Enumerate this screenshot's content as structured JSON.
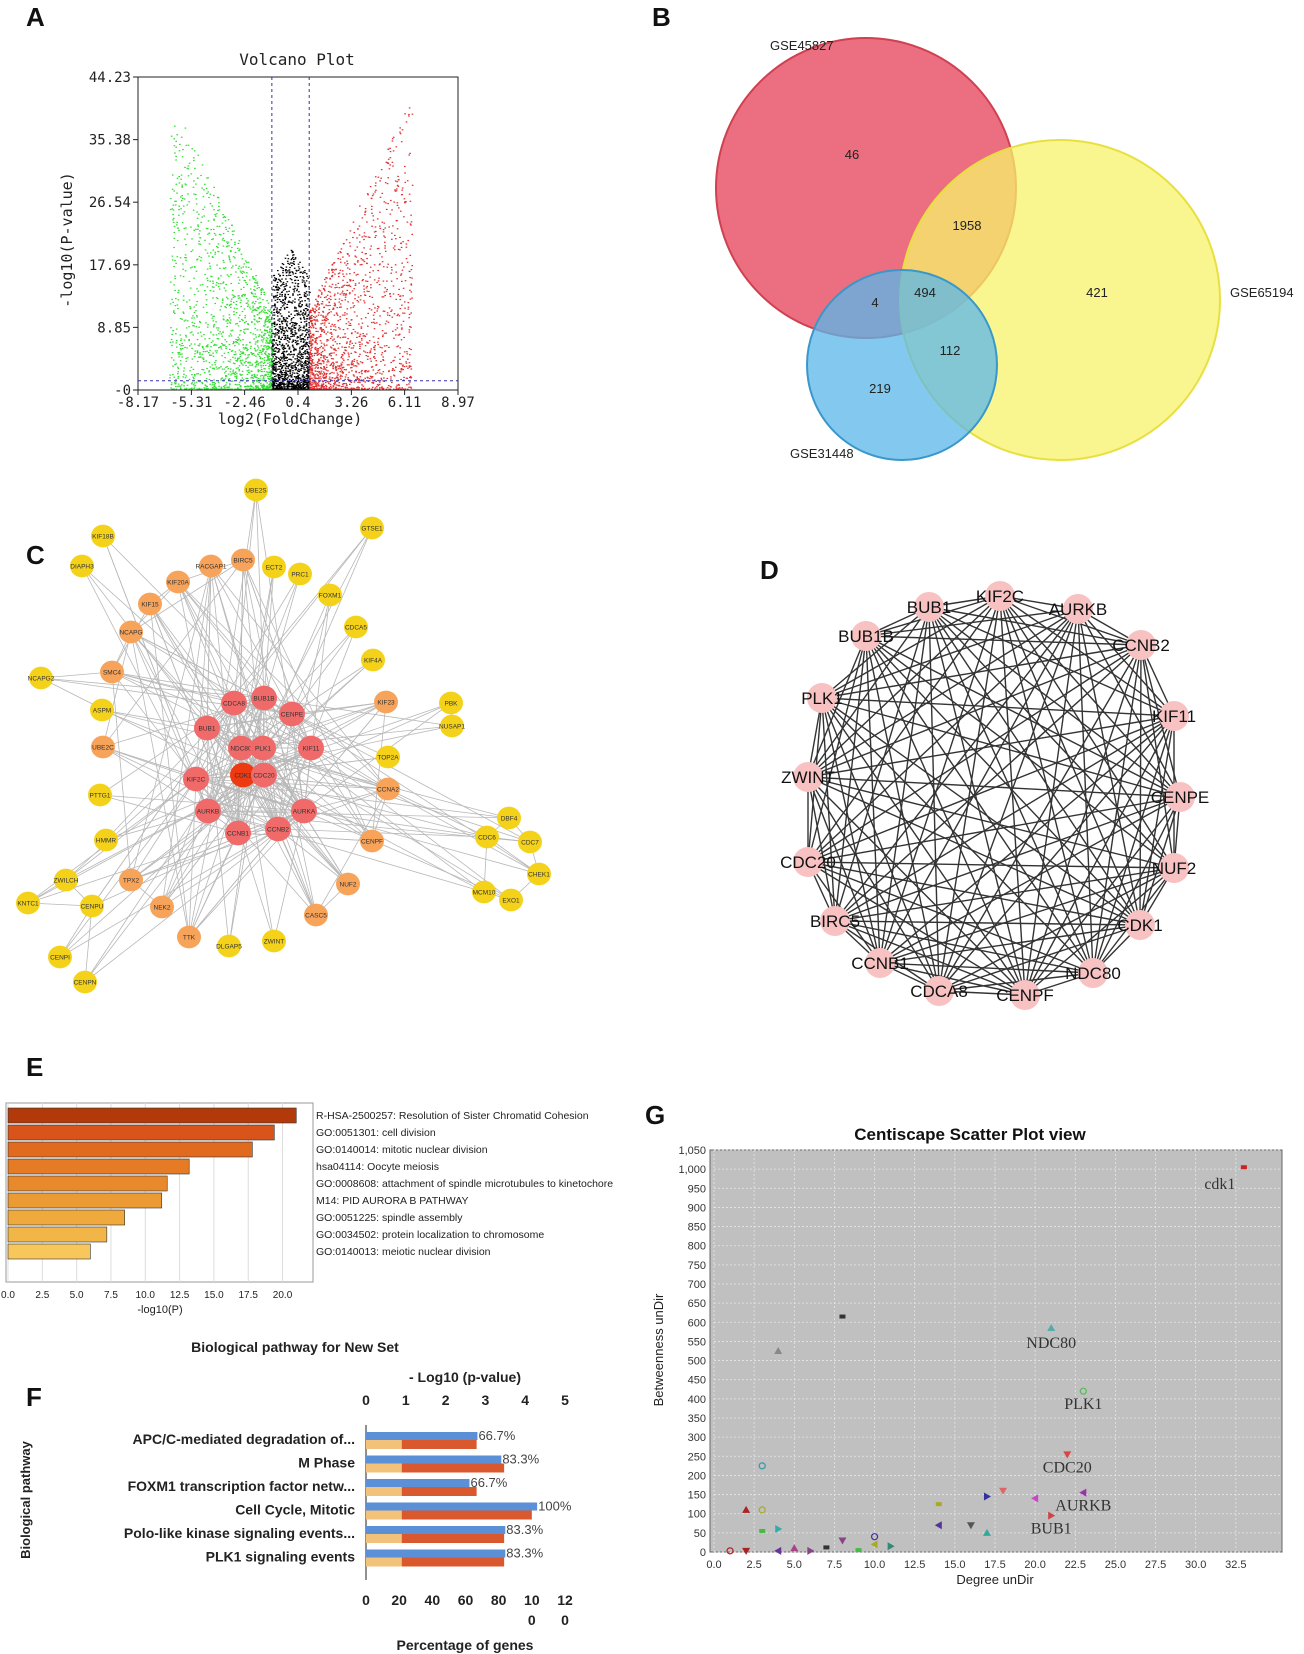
{
  "panel_labels": {
    "A": "A",
    "B": "B",
    "C": "C",
    "D": "D",
    "E": "E",
    "F": "F",
    "G": "G"
  },
  "colors": {
    "up": "#e03030",
    "down": "#33dd33",
    "ns": "#000000",
    "venn_red": "#e8566a",
    "venn_yellow": "#f7f36a",
    "venn_blue": "#5ab7ea"
  },
  "chart_data": [
    {
      "id": "A",
      "type": "scatter",
      "title": "Volcano Plot",
      "xlabel": "log2(FoldChange)",
      "ylabel": "-log10(P-value)",
      "x_ticks": [
        "-8.17",
        "-5.31",
        "-2.46",
        "0.4",
        "3.26",
        "6.11",
        "8.97"
      ],
      "y_ticks": [
        "-0",
        "8.85",
        "17.69",
        "26.54",
        "35.38",
        "44.23"
      ],
      "xlim": [
        -8.17,
        8.97
      ],
      "ylim": [
        0,
        44.23
      ],
      "thresholds": {
        "x": [
          -1,
          1
        ],
        "y": 1.3
      },
      "series": [
        {
          "name": "down",
          "color": "#33dd33",
          "x_range": [
            -6.5,
            -1
          ],
          "y_max": 38
        },
        {
          "name": "ns",
          "color": "#000000",
          "x_range": [
            -1,
            1
          ],
          "y_max": 20
        },
        {
          "name": "up",
          "color": "#e03030",
          "x_range": [
            1,
            6.5
          ],
          "y_max": 40
        }
      ]
    },
    {
      "id": "B",
      "type": "venn",
      "sets": [
        "GSE45827",
        "GSE65194",
        "GSE31448"
      ],
      "regions": {
        "only_GSE45827": "46",
        "GSE45827_GSE65194": "1958",
        "only_GSE65194": "421",
        "GSE45827_GSE31448": "4",
        "all_three": "494",
        "GSE65194_GSE31448": "112",
        "only_GSE31448": "219"
      }
    },
    {
      "id": "C",
      "type": "network",
      "nodes": [
        {
          "label": "UBE2S",
          "tier": 3
        },
        {
          "label": "GTSE1",
          "tier": 3
        },
        {
          "label": "KIF18B",
          "tier": 3
        },
        {
          "label": "DIAPH3",
          "tier": 3
        },
        {
          "label": "BIRC5",
          "tier": 2
        },
        {
          "label": "RACGAP1",
          "tier": 2
        },
        {
          "label": "ECT2",
          "tier": 3
        },
        {
          "label": "PRC1",
          "tier": 3
        },
        {
          "label": "KIF20A",
          "tier": 2
        },
        {
          "label": "FOXM1",
          "tier": 3
        },
        {
          "label": "KIF15",
          "tier": 2
        },
        {
          "label": "NCAPG",
          "tier": 2
        },
        {
          "label": "CDCA5",
          "tier": 3
        },
        {
          "label": "SMC4",
          "tier": 2
        },
        {
          "label": "KIF4A",
          "tier": 3
        },
        {
          "label": "NCAPG2",
          "tier": 3
        },
        {
          "label": "ASPM",
          "tier": 3
        },
        {
          "label": "KIF23",
          "tier": 2
        },
        {
          "label": "PBK",
          "tier": 3
        },
        {
          "label": "NUSAP1",
          "tier": 3
        },
        {
          "label": "CDCA8",
          "tier": 1
        },
        {
          "label": "BUB1B",
          "tier": 1
        },
        {
          "label": "CENPE",
          "tier": 1
        },
        {
          "label": "BUB1",
          "tier": 1
        },
        {
          "label": "NDC80",
          "tier": 1
        },
        {
          "label": "PLK1",
          "tier": 1
        },
        {
          "label": "KIF11",
          "tier": 1
        },
        {
          "label": "UBE2C",
          "tier": 2
        },
        {
          "label": "TOP2A",
          "tier": 3
        },
        {
          "label": "KIF2C",
          "tier": 1
        },
        {
          "label": "CDK1",
          "tier": 0
        },
        {
          "label": "CDC20",
          "tier": 1
        },
        {
          "label": "PTTG1",
          "tier": 3
        },
        {
          "label": "AURKB",
          "tier": 1
        },
        {
          "label": "AURKA",
          "tier": 1
        },
        {
          "label": "CCNA2",
          "tier": 2
        },
        {
          "label": "CCNB1",
          "tier": 1
        },
        {
          "label": "CCNB2",
          "tier": 1
        },
        {
          "label": "HMMR",
          "tier": 3
        },
        {
          "label": "CENPF",
          "tier": 2
        },
        {
          "label": "DBF4",
          "tier": 3
        },
        {
          "label": "CDC6",
          "tier": 3
        },
        {
          "label": "CDC7",
          "tier": 3
        },
        {
          "label": "ZWILCH",
          "tier": 3
        },
        {
          "label": "TPX2",
          "tier": 2
        },
        {
          "label": "MCM10",
          "tier": 3
        },
        {
          "label": "CHEK1",
          "tier": 3
        },
        {
          "label": "KNTC1",
          "tier": 3
        },
        {
          "label": "CENPU",
          "tier": 3
        },
        {
          "label": "NEK2",
          "tier": 2
        },
        {
          "label": "NUF2",
          "tier": 2
        },
        {
          "label": "EXO1",
          "tier": 3
        },
        {
          "label": "CASC5",
          "tier": 2
        },
        {
          "label": "TTK",
          "tier": 2
        },
        {
          "label": "ZWINT",
          "tier": 3
        },
        {
          "label": "DLGAP5",
          "tier": 3
        },
        {
          "label": "CENPI",
          "tier": 3
        },
        {
          "label": "CENPN",
          "tier": 3
        }
      ],
      "tier_colors": [
        "#ee3a10",
        "#f06a6a",
        "#f7a35a",
        "#f5d21a"
      ]
    },
    {
      "id": "D",
      "type": "network",
      "nodes": [
        "KIF2C",
        "AURKB",
        "CCNB2",
        "KIF11",
        "CENPE",
        "NUF2",
        "CDK1",
        "NDC80",
        "CENPF",
        "CDCA8",
        "CCNB1",
        "BIRC5",
        "CDC20",
        "ZWINT",
        "PLK1",
        "BUB1B",
        "BUB1"
      ],
      "edges": "near-complete"
    },
    {
      "id": "E",
      "type": "bar",
      "orientation": "horizontal",
      "title": "Biological pathway for New Set",
      "xlabel": "-log10(P)",
      "x_ticks": [
        "0.0",
        "2.5",
        "5.0",
        "7.5",
        "10.0",
        "12.5",
        "15.0",
        "17.5",
        "20.0"
      ],
      "xlim": [
        0,
        22
      ],
      "categories": [
        "R-HSA-2500257: Resolution of Sister Chromatid Cohesion",
        "GO:0051301: cell division",
        "GO:0140014: mitotic nuclear division",
        "hsa04114: Oocyte meiosis",
        "GO:0008608: attachment of spindle microtubules to kinetochore",
        "M14: PID AURORA B PATHWAY",
        "GO:0051225: spindle assembly",
        "GO:0034502: protein localization to chromosome",
        "GO:0140013: meiotic nuclear division"
      ],
      "values": [
        21.0,
        19.4,
        17.8,
        13.2,
        11.6,
        11.2,
        8.5,
        7.2,
        6.0
      ],
      "bar_colors": [
        "#b23a0a",
        "#d9541a",
        "#e06a1e",
        "#e57b25",
        "#e88a2c",
        "#ec9a33",
        "#efa93c",
        "#f2b648",
        "#f7c75c"
      ]
    },
    {
      "id": "F",
      "type": "bar",
      "orientation": "horizontal",
      "ylabel": "Biological pathway",
      "top_axis_label": "- Log10 (p-value)",
      "bottom_axis_label": "Percentage of genes",
      "top_ticks": [
        "0",
        "1",
        "2",
        "3",
        "4",
        "5"
      ],
      "bottom_ticks": [
        "0",
        "20",
        "40",
        "60",
        "80",
        "10",
        "12"
      ],
      "bottom_ticks_extra": [
        "0",
        "0"
      ],
      "top_xlim": [
        0,
        5
      ],
      "bottom_xlim": [
        0,
        120
      ],
      "categories": [
        "APC/C-mediated degradation of...",
        "M Phase",
        "FOXM1 transcription factor netw...",
        "Cell Cycle, Mitotic",
        "Polo-like kinase signaling events...",
        "PLK1 signaling events"
      ],
      "series": [
        {
          "name": "-log10(p-value)",
          "color": "#5b8fd6",
          "values": [
            2.8,
            3.4,
            2.6,
            4.3,
            3.5,
            3.5
          ]
        },
        {
          "name": "percentage",
          "color": "#d9582e",
          "values": [
            66.7,
            83.3,
            66.7,
            100,
            83.3,
            83.3
          ]
        },
        {
          "name": "baseline",
          "color": "#f2c27a",
          "values": [
            0.9,
            0.9,
            0.9,
            0.9,
            0.9,
            0.9
          ]
        }
      ],
      "value_labels": [
        "66.7%",
        "83.3%",
        "66.7%",
        "100%",
        "83.3%",
        "83.3%"
      ]
    },
    {
      "id": "G",
      "type": "scatter",
      "title": "Centiscape Scatter Plot view",
      "xlabel": "Degree unDir",
      "ylabel": "Betweenness unDir",
      "x_ticks": [
        "0.0",
        "2.5",
        "5.0",
        "7.5",
        "10.0",
        "12.5",
        "15.0",
        "17.5",
        "20.0",
        "22.5",
        "25.0",
        "27.5",
        "30.0",
        "32.5"
      ],
      "y_ticks": [
        "0",
        "50",
        "100",
        "150",
        "200",
        "250",
        "300",
        "350",
        "400",
        "450",
        "500",
        "550",
        "600",
        "650",
        "700",
        "750",
        "800",
        "850",
        "900",
        "950",
        "1,000",
        "1,050"
      ],
      "xlim": [
        0,
        35
      ],
      "ylim": [
        0,
        1050
      ],
      "points": [
        {
          "x": 33,
          "y": 1005,
          "label": "cdk1",
          "color": "#cc2222"
        },
        {
          "x": 21,
          "y": 585,
          "label": "NDC80",
          "color": "#55aaaa"
        },
        {
          "x": 23,
          "y": 420,
          "label": "PLK1",
          "color": "#55bb55"
        },
        {
          "x": 22,
          "y": 255,
          "label": "CDC20",
          "color": "#dd4444"
        },
        {
          "x": 23,
          "y": 155,
          "label": "AURKB",
          "color": "#9933aa"
        },
        {
          "x": 21,
          "y": 95,
          "label": "BUB1",
          "color": "#cc4444"
        },
        {
          "x": 8,
          "y": 615,
          "label": "",
          "color": "#333333"
        },
        {
          "x": 4,
          "y": 525,
          "label": "",
          "color": "#888888"
        },
        {
          "x": 3,
          "y": 225,
          "label": "",
          "color": "#3399aa"
        },
        {
          "x": 18,
          "y": 160,
          "label": "",
          "color": "#dd6666"
        },
        {
          "x": 20,
          "y": 140,
          "label": "",
          "color": "#cc44cc"
        },
        {
          "x": 17,
          "y": 145,
          "label": "",
          "color": "#333399"
        },
        {
          "x": 14,
          "y": 125,
          "label": "",
          "color": "#aaaa22"
        },
        {
          "x": 2,
          "y": 110,
          "label": "",
          "color": "#aa2222"
        },
        {
          "x": 3,
          "y": 110,
          "label": "",
          "color": "#aaaa22"
        },
        {
          "x": 16,
          "y": 70,
          "label": "",
          "color": "#555555"
        },
        {
          "x": 14,
          "y": 70,
          "label": "",
          "color": "#553399"
        },
        {
          "x": 4,
          "y": 60,
          "label": "",
          "color": "#33aaaa"
        },
        {
          "x": 3,
          "y": 55,
          "label": "",
          "color": "#44bb44"
        },
        {
          "x": 17,
          "y": 50,
          "label": "",
          "color": "#33aa99"
        },
        {
          "x": 10,
          "y": 40,
          "label": "",
          "color": "#443399"
        },
        {
          "x": 8,
          "y": 30,
          "label": "",
          "color": "#884488"
        },
        {
          "x": 10,
          "y": 20,
          "label": "",
          "color": "#aaaa22"
        },
        {
          "x": 11,
          "y": 15,
          "label": "",
          "color": "#338877"
        },
        {
          "x": 7,
          "y": 12,
          "label": "",
          "color": "#333333"
        },
        {
          "x": 5,
          "y": 10,
          "label": "",
          "color": "#aa4488"
        },
        {
          "x": 1,
          "y": 3,
          "label": "",
          "color": "#aa2222"
        },
        {
          "x": 2,
          "y": 3,
          "label": "",
          "color": "#aa2222"
        },
        {
          "x": 4,
          "y": 3,
          "label": "",
          "color": "#663399"
        },
        {
          "x": 6,
          "y": 3,
          "label": "",
          "color": "#884488"
        },
        {
          "x": 9,
          "y": 5,
          "label": "",
          "color": "#44bb44"
        }
      ]
    }
  ]
}
